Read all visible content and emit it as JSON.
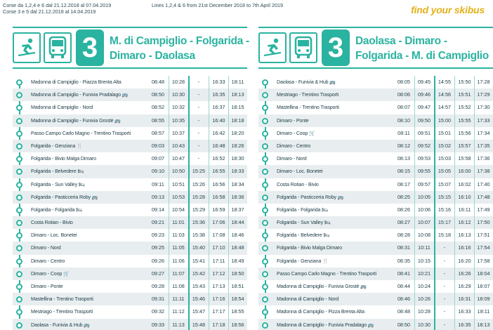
{
  "top": {
    "note_left_1": "Corse da 1,2,4 e 6 dal 21.12.2018 al 07.04.2019",
    "note_left_2": "Corse 3 e 5 dal 21.12.2018 al 14.04.2019",
    "note_mid": "Lines 1,2,4 & 6 from 21st December 2018 to 7th April 2019",
    "brand": "find your skibus"
  },
  "colors": {
    "accent": "#2ab3a0",
    "brand": "#e3b11a",
    "row_shade": "#e8eef0"
  },
  "panels": [
    {
      "id": "left",
      "line_number": "3",
      "title_1": "M. di Campiglio - Folgarida -",
      "title_2": "Dimaro - Daolasa",
      "rows": [
        {
          "stop": "Madonna di Campiglio - Piazza Brenta Alta",
          "icon": "",
          "times": [
            "08:48",
            "10:28",
            "-",
            "16:33",
            "18:11"
          ]
        },
        {
          "stop": "Madonna di Campiglio - Funivia Pradalago",
          "icon": "bus",
          "times": [
            "08:50",
            "10:30",
            "-",
            "16:35",
            "18:13"
          ]
        },
        {
          "stop": "Madonna di Campiglio - Nord",
          "icon": "",
          "times": [
            "08:52",
            "10:32",
            "-",
            "16:37",
            "18:15"
          ]
        },
        {
          "stop": "Madonna di Campiglio - Funivia Grostè",
          "icon": "bus",
          "times": [
            "08:55",
            "10:35",
            "-",
            "16:40",
            "18:18"
          ]
        },
        {
          "stop": "Passo Campo Carlo Magno - Trentino Trasporti",
          "icon": "",
          "times": [
            "08:57",
            "10:37",
            "-",
            "16:42",
            "18:20"
          ]
        },
        {
          "stop": "Folgarida - Genziana",
          "icon": "food",
          "times": [
            "09:03",
            "10:43",
            "-",
            "16:48",
            "18:26"
          ]
        },
        {
          "stop": "Folgarida - Bivio Malga Dimaro",
          "icon": "",
          "times": [
            "09:07",
            "10:47",
            "-",
            "16:52",
            "18:30"
          ]
        },
        {
          "stop": "Folgarida - Belvedere",
          "icon": "bed",
          "times": [
            "09:10",
            "10:50",
            "15:25",
            "16:55",
            "18:33"
          ]
        },
        {
          "stop": "Folgarida - Sun Valley",
          "icon": "bed",
          "times": [
            "09:11",
            "10:51",
            "15:26",
            "16:56",
            "18:34"
          ]
        },
        {
          "stop": "Folgarida - Pasticceria Roby",
          "icon": "bus",
          "times": [
            "09:13",
            "10:53",
            "15:28",
            "16:58",
            "18:36"
          ]
        },
        {
          "stop": "Folgarida - Folgarida",
          "icon": "bed",
          "times": [
            "09:14",
            "10:54",
            "15:29",
            "16:59",
            "18:37"
          ]
        },
        {
          "stop": "Costa Rotian - Bivio",
          "icon": "",
          "times": [
            "09:21",
            "11:01",
            "15:36",
            "17:06",
            "18:44"
          ]
        },
        {
          "stop": "Dimaro - Loc. Bonetei",
          "icon": "",
          "times": [
            "09:23",
            "11:03",
            "15:38",
            "17:08",
            "18:46"
          ]
        },
        {
          "stop": "Dimaro - Nord",
          "icon": "",
          "times": [
            "09:25",
            "11:05",
            "15:40",
            "17:10",
            "18:48"
          ]
        },
        {
          "stop": "Dimaro - Centro",
          "icon": "",
          "times": [
            "09:26",
            "11:06",
            "15:41",
            "17:11",
            "18:49"
          ]
        },
        {
          "stop": "Dimaro - Coop",
          "icon": "cart",
          "times": [
            "09:27",
            "11:07",
            "15:42",
            "17:12",
            "18:50"
          ]
        },
        {
          "stop": "Dimaro - Ponte",
          "icon": "",
          "times": [
            "09:28",
            "11:08",
            "15:43",
            "17:13",
            "18:51"
          ]
        },
        {
          "stop": "Mastellina - Trentino Trasporti",
          "icon": "",
          "times": [
            "09:31",
            "11:11",
            "15:46",
            "17:16",
            "18:54"
          ]
        },
        {
          "stop": "Mestriago - Trentino Trasporti",
          "icon": "",
          "times": [
            "09:32",
            "11:12",
            "15:47",
            "17:17",
            "18:55"
          ]
        },
        {
          "stop": "Daolasa - Funivia & Hub",
          "icon": "bus",
          "times": [
            "09:33",
            "11:13",
            "15:48",
            "17:18",
            "18:56"
          ]
        }
      ]
    },
    {
      "id": "right",
      "line_number": "3",
      "title_1": "Daolasa - Dimaro -",
      "title_2": "Folgarida - M. di Campiglio",
      "rows": [
        {
          "stop": "Daolasa - Funivia & Hub",
          "icon": "bus",
          "times": [
            "08:05",
            "09:45",
            "14:55",
            "15:50",
            "17:28"
          ]
        },
        {
          "stop": "Mestriago - Trentino Trasporti",
          "icon": "",
          "times": [
            "08:06",
            "09:46",
            "14:56",
            "15:51",
            "17:29"
          ]
        },
        {
          "stop": "Mastellina - Trentino Trasporti",
          "icon": "",
          "times": [
            "08:07",
            "09:47",
            "14:57",
            "15:52",
            "17:30"
          ]
        },
        {
          "stop": "Dimaro - Ponte",
          "icon": "",
          "times": [
            "08:10",
            "09:50",
            "15:00",
            "15:55",
            "17:33"
          ]
        },
        {
          "stop": "Dimaro - Coop",
          "icon": "cart",
          "times": [
            "08:11",
            "09:51",
            "15:01",
            "15:56",
            "17:34"
          ]
        },
        {
          "stop": "Dimaro - Centro",
          "icon": "",
          "times": [
            "08:12",
            "09:52",
            "15:02",
            "15:57",
            "17:35"
          ]
        },
        {
          "stop": "Dimaro - Nord",
          "icon": "",
          "times": [
            "08:13",
            "09:53",
            "15:03",
            "15:58",
            "17:36"
          ]
        },
        {
          "stop": "Dimaro - Loc. Bonetei",
          "icon": "",
          "times": [
            "08:15",
            "09:55",
            "15:05",
            "16:00",
            "17:38"
          ]
        },
        {
          "stop": "Costa Rotian - Bivio",
          "icon": "",
          "times": [
            "08:17",
            "09:57",
            "15:07",
            "16:02",
            "17:40"
          ]
        },
        {
          "stop": "Folgarida - Pasticceria Roby",
          "icon": "bus",
          "times": [
            "08:25",
            "10:05",
            "15:15",
            "16:10",
            "17:48"
          ]
        },
        {
          "stop": "Folgarida - Folgarida",
          "icon": "bed",
          "times": [
            "08:26",
            "10:06",
            "15:16",
            "16:11",
            "17:49"
          ]
        },
        {
          "stop": "Folgarida - Sun Valley",
          "icon": "bed",
          "times": [
            "08:27",
            "10:07",
            "15:17",
            "16:12",
            "17:50"
          ]
        },
        {
          "stop": "Folgarida - Belvedere",
          "icon": "bed",
          "times": [
            "08:28",
            "10:08",
            "15:18",
            "16:13",
            "17:51"
          ]
        },
        {
          "stop": "Folgarida - Bivio Malga Dimaro",
          "icon": "",
          "times": [
            "08:31",
            "10:11",
            "-",
            "16:16",
            "17:54"
          ]
        },
        {
          "stop": "Folgarida - Genziana",
          "icon": "food",
          "times": [
            "08:35",
            "10:15",
            "-",
            "16:20",
            "17:58"
          ]
        },
        {
          "stop": "Passo Campo Carlo Magno - Trentino Trasporti",
          "icon": "",
          "times": [
            "08:41",
            "10:21",
            "-",
            "16:26",
            "18:04"
          ]
        },
        {
          "stop": "Madonna di Campiglio - Funivia Grostè",
          "icon": "bus",
          "times": [
            "08:44",
            "10:24",
            "-",
            "16:29",
            "18:07"
          ]
        },
        {
          "stop": "Madonna di Campiglio - Nord",
          "icon": "",
          "times": [
            "08:46",
            "10:26",
            "-",
            "16:31",
            "18:09"
          ]
        },
        {
          "stop": "Madonna di Campiglio - Pizza Brenta Alta",
          "icon": "",
          "times": [
            "08:48",
            "10:28",
            "-",
            "16:33",
            "18:11"
          ]
        },
        {
          "stop": "Madonna di Campiglio - Funivia Pradalago",
          "icon": "bus",
          "times": [
            "08:50",
            "10:30",
            "-",
            "16:35",
            "18:13"
          ]
        }
      ]
    }
  ]
}
